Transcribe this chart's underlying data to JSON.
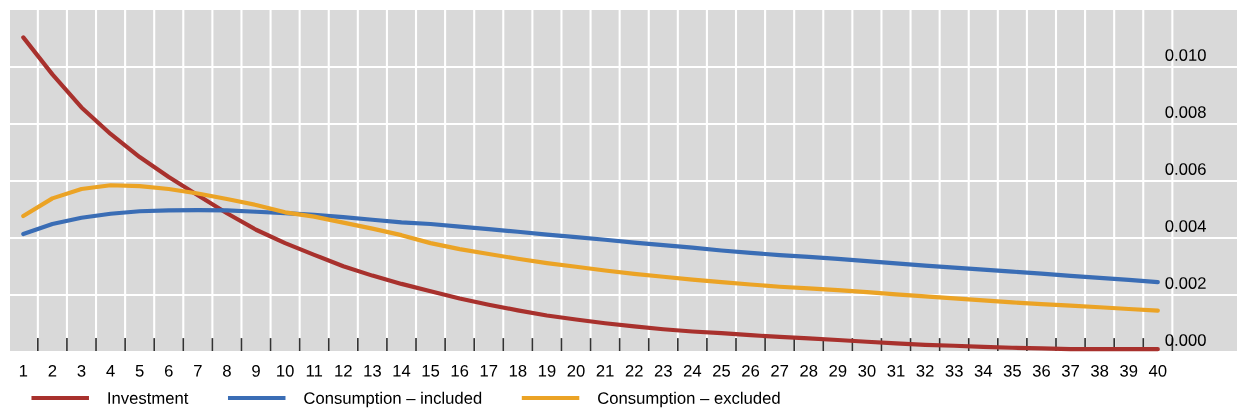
{
  "chart_data": {
    "type": "line",
    "categories": [
      "1",
      "2",
      "3",
      "4",
      "5",
      "6",
      "7",
      "8",
      "9",
      "10",
      "11",
      "12",
      "13",
      "14",
      "15",
      "16",
      "17",
      "18",
      "19",
      "20",
      "21",
      "22",
      "23",
      "24",
      "25",
      "26",
      "27",
      "28",
      "29",
      "30",
      "31",
      "32",
      "33",
      "34",
      "35",
      "36",
      "37",
      "38",
      "39",
      "40"
    ],
    "series": [
      {
        "name": "Investment",
        "color": "#a8312d",
        "values": [
          0.01104,
          0.00974,
          0.00858,
          0.00765,
          0.00684,
          0.00614,
          0.0055,
          0.00487,
          0.00429,
          0.00382,
          0.00341,
          0.00301,
          0.00268,
          0.00239,
          0.00213,
          0.00188,
          0.00166,
          0.00146,
          0.00128,
          0.00114,
          0.00101,
          0.0009,
          0.0008,
          0.00072,
          0.00066,
          0.00059,
          0.00053,
          0.00048,
          0.00042,
          0.00036,
          0.0003,
          0.00025,
          0.00022,
          0.00018,
          0.00015,
          0.00013,
          0.0001,
          0.0001,
          0.0001,
          0.0001
        ]
      },
      {
        "name": "Consumption – included",
        "color": "#3a6db5",
        "values": [
          0.00414,
          0.00449,
          0.00471,
          0.00485,
          0.00494,
          0.00497,
          0.00498,
          0.00497,
          0.00492,
          0.00487,
          0.00481,
          0.00473,
          0.00464,
          0.00455,
          0.00449,
          0.0044,
          0.00431,
          0.00422,
          0.00412,
          0.00403,
          0.00394,
          0.00384,
          0.00375,
          0.00366,
          0.00356,
          0.00348,
          0.0034,
          0.00334,
          0.00327,
          0.00319,
          0.00311,
          0.00303,
          0.00296,
          0.00289,
          0.00282,
          0.00275,
          0.00267,
          0.0026,
          0.00253,
          0.00245
        ]
      },
      {
        "name": "Consumption – excluded",
        "color": "#eba325",
        "values": [
          0.00477,
          0.00539,
          0.00572,
          0.00585,
          0.00582,
          0.00572,
          0.00556,
          0.00537,
          0.00516,
          0.0049,
          0.00475,
          0.00454,
          0.00433,
          0.0041,
          0.00382,
          0.00361,
          0.00344,
          0.00327,
          0.00312,
          0.00299,
          0.00286,
          0.00274,
          0.00264,
          0.00254,
          0.00245,
          0.00237,
          0.00229,
          0.00223,
          0.00217,
          0.0021,
          0.00202,
          0.00195,
          0.00188,
          0.00181,
          0.00174,
          0.00168,
          0.00163,
          0.00157,
          0.00151,
          0.00145
        ]
      }
    ],
    "ylim": [
      0,
      0.012
    ],
    "yticks": [
      {
        "value": 0,
        "label": "0.000"
      },
      {
        "value": 0.002,
        "label": "0.002"
      },
      {
        "value": 0.004,
        "label": "0.004"
      },
      {
        "value": 0.006,
        "label": "0.006"
      },
      {
        "value": 0.008,
        "label": "0.008"
      },
      {
        "value": 0.01,
        "label": "0.010"
      }
    ],
    "grid": true,
    "legend": "bottom",
    "marker": "none",
    "line_style": "solid"
  }
}
